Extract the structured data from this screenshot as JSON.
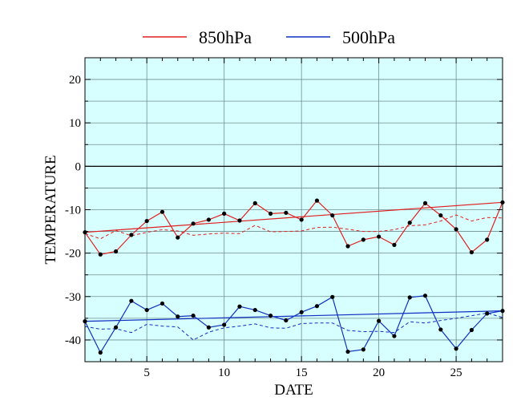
{
  "chart_data": {
    "type": "line",
    "xlabel": "DATE",
    "ylabel": "TEMPERATURE",
    "xlim": [
      1,
      28
    ],
    "ylim": [
      -45,
      25
    ],
    "x_ticks": [
      5,
      10,
      15,
      20,
      25
    ],
    "y_ticks": [
      20,
      10,
      0,
      -10,
      -20,
      -30,
      -40
    ],
    "x_minor_step": 1,
    "y_minor_step": 5,
    "grid": true,
    "zero_line": true,
    "legend_position": "top-center",
    "plot_background": "#d8ffff",
    "x": [
      1,
      2,
      3,
      4,
      5,
      6,
      7,
      8,
      9,
      10,
      11,
      12,
      13,
      14,
      15,
      16,
      17,
      18,
      19,
      20,
      21,
      22,
      23,
      24,
      25,
      26,
      27,
      28
    ],
    "series": [
      {
        "name": "850hPa",
        "color": "#e02020",
        "values": [
          -15.2,
          -20.3,
          -19.6,
          -15.8,
          -12.6,
          -10.5,
          -16.4,
          -13.2,
          -12.3,
          -10.9,
          -12.5,
          -8.5,
          -10.9,
          -10.7,
          -12.3,
          -7.9,
          -11.3,
          -18.4,
          -16.9,
          -16.2,
          -18.1,
          -13.0,
          -8.5,
          -11.3,
          -14.5,
          -19.8,
          -16.9,
          -8.3
        ],
        "normal": [
          -15.5,
          -16.7,
          -14.8,
          -16.0,
          -15.2,
          -14.6,
          -14.9,
          -15.9,
          -15.6,
          -15.4,
          -15.5,
          -13.6,
          -15.1,
          -15.0,
          -14.9,
          -14.1,
          -14.0,
          -14.5,
          -15.0,
          -15.0,
          -14.6,
          -13.7,
          -13.5,
          -12.6,
          -11.2,
          -12.6,
          -11.8,
          -11.9
        ],
        "trend": [
          -15.2,
          -8.3
        ]
      },
      {
        "name": "500hPa",
        "color": "#1030c0",
        "values": [
          -35.7,
          -42.9,
          -37.1,
          -31.0,
          -33.1,
          -31.6,
          -34.6,
          -34.4,
          -37.1,
          -36.5,
          -32.3,
          -33.1,
          -34.4,
          -35.5,
          -33.6,
          -32.2,
          -30.1,
          -42.7,
          -42.2,
          -35.6,
          -39.1,
          -30.2,
          -29.8,
          -37.6,
          -42.0,
          -37.7,
          -33.9,
          -33.3
        ],
        "normal": [
          -36.9,
          -37.5,
          -37.4,
          -38.3,
          -36.4,
          -36.8,
          -37.0,
          -40.0,
          -38.2,
          -37.2,
          -36.8,
          -36.3,
          -37.2,
          -37.3,
          -36.2,
          -36.1,
          -36.1,
          -37.8,
          -38.1,
          -38.0,
          -38.3,
          -35.8,
          -36.1,
          -35.5,
          -35.0,
          -34.4,
          -33.8,
          -34.8
        ],
        "trend": [
          -35.7,
          -33.3
        ]
      }
    ]
  },
  "colors": {
    "frame": "#000000",
    "grid": "#6f8f8f",
    "zero_line": "#000000",
    "marker": "#000000"
  }
}
